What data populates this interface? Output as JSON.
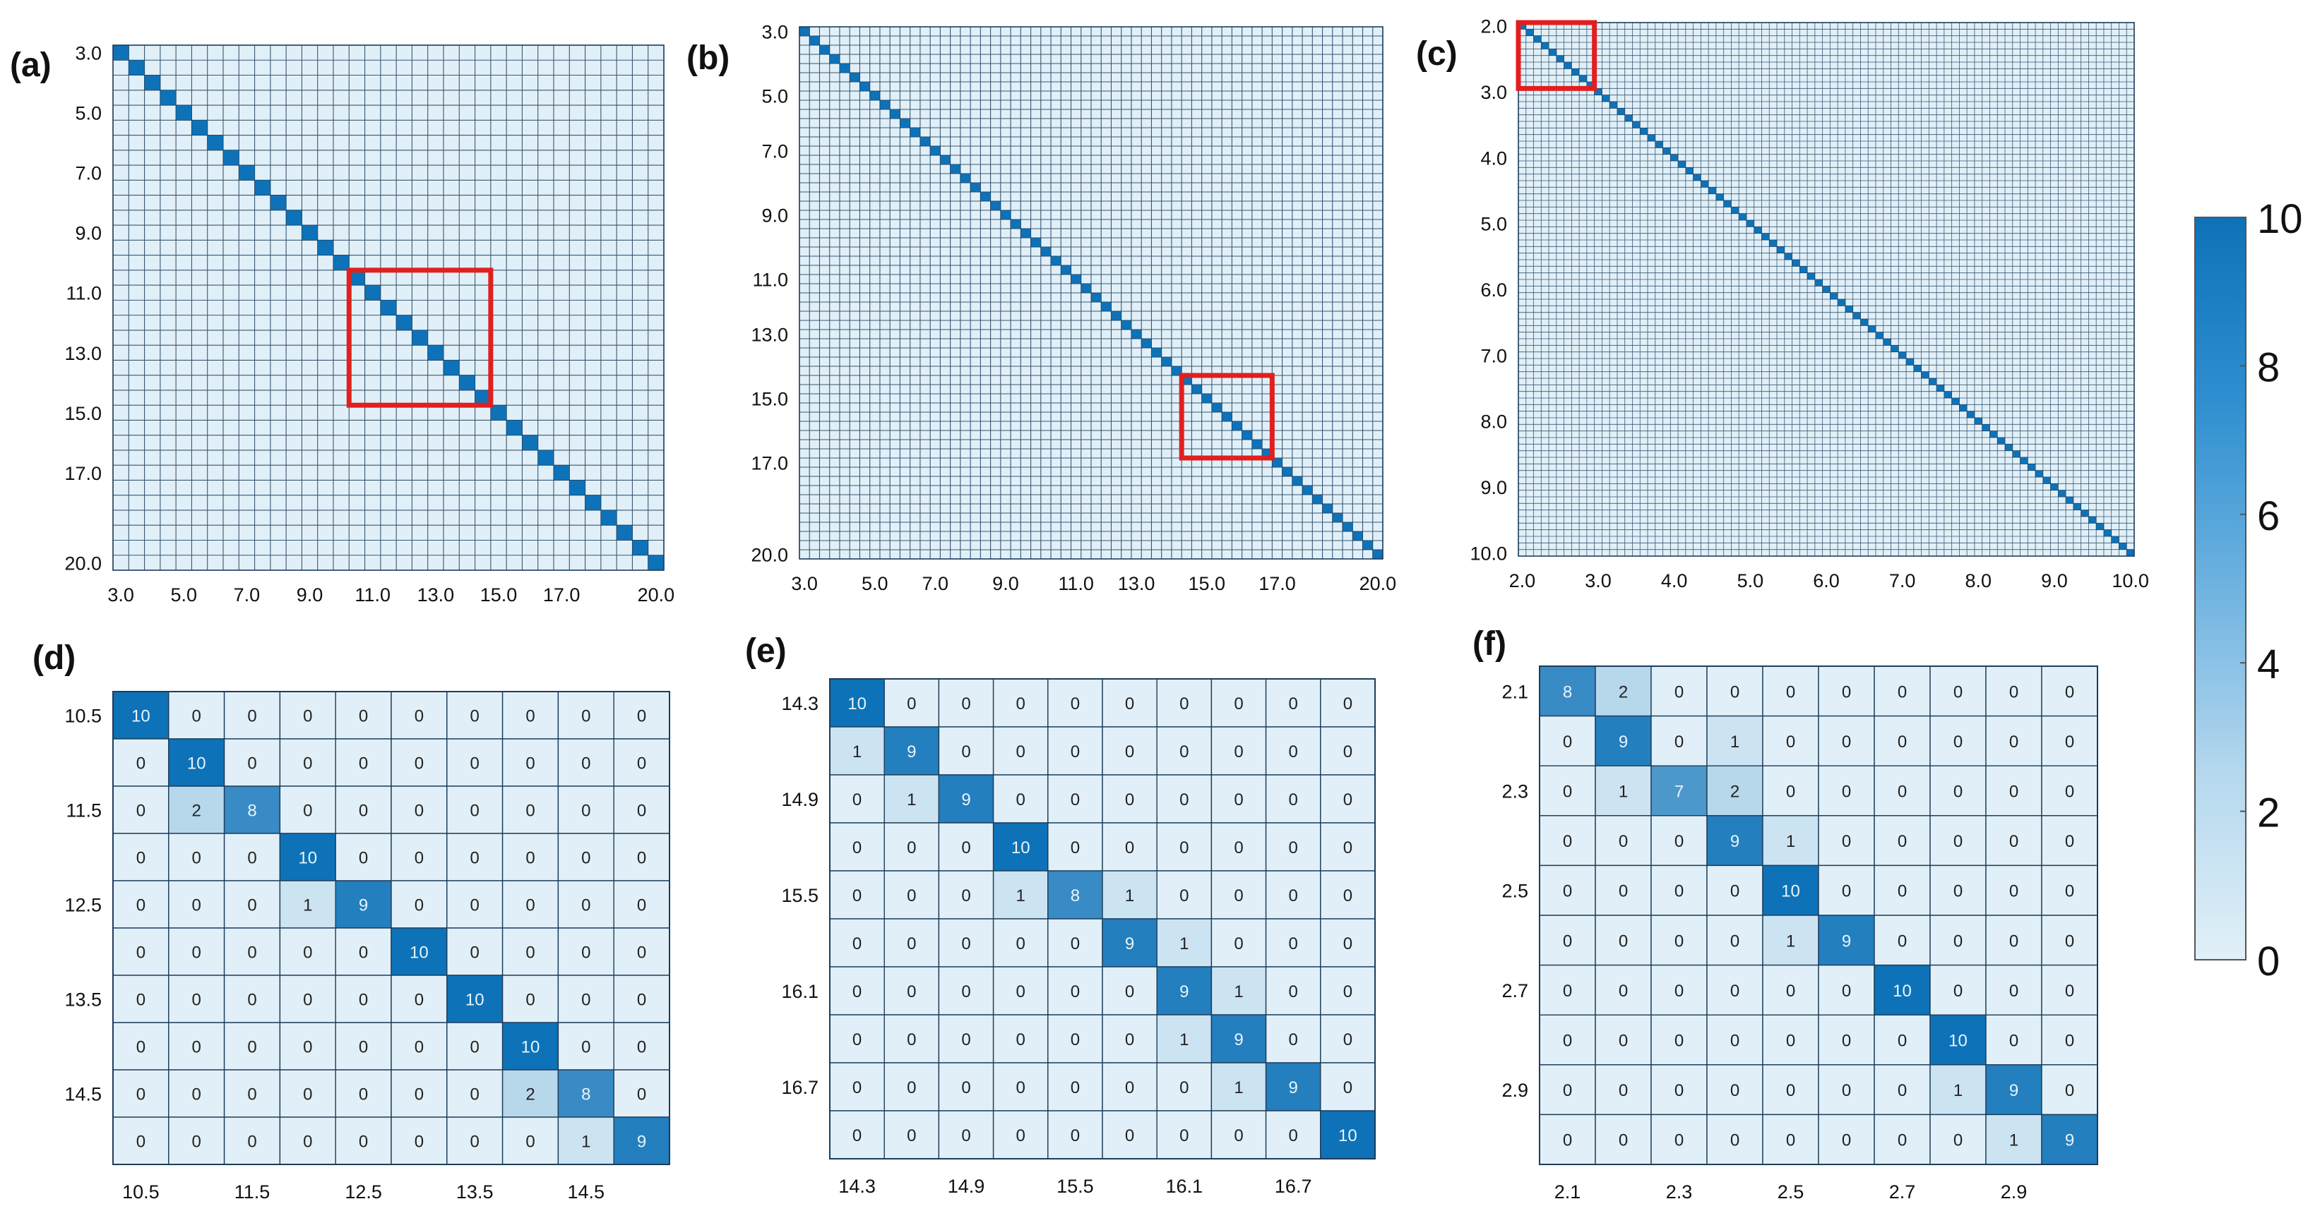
{
  "colors": {
    "low": "#e1f0f8",
    "high": "#0e72b8",
    "grid": "#1c3c5a",
    "highlight_box": "#e11f1f",
    "cell_text_dark": "#222222",
    "cell_text_light": "#e8f4fb"
  },
  "colorbar": {
    "ticks": [
      "0",
      "2",
      "4",
      "6",
      "8",
      "10"
    ],
    "min": 0,
    "max": 10
  },
  "chart_data": [
    {
      "panel_label": "(a)",
      "type": "heatmap",
      "size": 35,
      "start": 3.0,
      "step": 0.5,
      "diag_value": 10,
      "tick_labels": [
        "3.0",
        "5.0",
        "7.0",
        "9.0",
        "11.0",
        "13.0",
        "15.0",
        "17.0",
        "20.0"
      ],
      "highlight": {
        "from": "10.5",
        "to": "14.5"
      }
    },
    {
      "panel_label": "(b)",
      "type": "heatmap",
      "size": 58,
      "start": 3.0,
      "step": 0.3,
      "diag_value": 10,
      "tick_labels": [
        "3.0",
        "5.0",
        "7.0",
        "9.0",
        "11.0",
        "13.0",
        "15.0",
        "17.0",
        "20.0"
      ],
      "highlight": {
        "from": "14.3",
        "to": "16.7"
      }
    },
    {
      "panel_label": "(c)",
      "type": "heatmap",
      "size": 81,
      "start": 2.0,
      "step": 0.1,
      "diag_value": 10,
      "tick_labels": [
        "2.0",
        "3.0",
        "4.0",
        "5.0",
        "6.0",
        "7.0",
        "8.0",
        "9.0",
        "10.0"
      ],
      "highlight": {
        "from": "2.0",
        "to": "2.9"
      }
    },
    {
      "panel_label": "(d)",
      "type": "heatmap",
      "tick_labels": [
        "10.5",
        "11.5",
        "12.5",
        "13.5",
        "14.5"
      ],
      "matrix": [
        [
          10,
          0,
          0,
          0,
          0,
          0,
          0,
          0,
          0,
          0
        ],
        [
          0,
          10,
          0,
          0,
          0,
          0,
          0,
          0,
          0,
          0
        ],
        [
          0,
          2,
          8,
          0,
          0,
          0,
          0,
          0,
          0,
          0
        ],
        [
          0,
          0,
          0,
          10,
          0,
          0,
          0,
          0,
          0,
          0
        ],
        [
          0,
          0,
          0,
          1,
          9,
          0,
          0,
          0,
          0,
          0
        ],
        [
          0,
          0,
          0,
          0,
          0,
          10,
          0,
          0,
          0,
          0
        ],
        [
          0,
          0,
          0,
          0,
          0,
          0,
          10,
          0,
          0,
          0
        ],
        [
          0,
          0,
          0,
          0,
          0,
          0,
          0,
          10,
          0,
          0
        ],
        [
          0,
          0,
          0,
          0,
          0,
          0,
          0,
          2,
          8,
          0
        ],
        [
          0,
          0,
          0,
          0,
          0,
          0,
          0,
          0,
          1,
          9
        ]
      ]
    },
    {
      "panel_label": "(e)",
      "type": "heatmap",
      "tick_labels": [
        "14.3",
        "14.9",
        "15.5",
        "16.1",
        "16.7"
      ],
      "matrix": [
        [
          10,
          0,
          0,
          0,
          0,
          0,
          0,
          0,
          0,
          0
        ],
        [
          1,
          9,
          0,
          0,
          0,
          0,
          0,
          0,
          0,
          0
        ],
        [
          0,
          1,
          9,
          0,
          0,
          0,
          0,
          0,
          0,
          0
        ],
        [
          0,
          0,
          0,
          10,
          0,
          0,
          0,
          0,
          0,
          0
        ],
        [
          0,
          0,
          0,
          1,
          8,
          1,
          0,
          0,
          0,
          0
        ],
        [
          0,
          0,
          0,
          0,
          0,
          9,
          1,
          0,
          0,
          0
        ],
        [
          0,
          0,
          0,
          0,
          0,
          0,
          9,
          1,
          0,
          0
        ],
        [
          0,
          0,
          0,
          0,
          0,
          0,
          1,
          9,
          0,
          0
        ],
        [
          0,
          0,
          0,
          0,
          0,
          0,
          0,
          1,
          9,
          0
        ],
        [
          0,
          0,
          0,
          0,
          0,
          0,
          0,
          0,
          0,
          10
        ]
      ]
    },
    {
      "panel_label": "(f)",
      "type": "heatmap",
      "tick_labels": [
        "2.1",
        "2.3",
        "2.5",
        "2.7",
        "2.9"
      ],
      "matrix": [
        [
          8,
          2,
          0,
          0,
          0,
          0,
          0,
          0,
          0,
          0
        ],
        [
          0,
          9,
          0,
          1,
          0,
          0,
          0,
          0,
          0,
          0
        ],
        [
          0,
          1,
          7,
          2,
          0,
          0,
          0,
          0,
          0,
          0
        ],
        [
          0,
          0,
          0,
          9,
          1,
          0,
          0,
          0,
          0,
          0
        ],
        [
          0,
          0,
          0,
          0,
          10,
          0,
          0,
          0,
          0,
          0
        ],
        [
          0,
          0,
          0,
          0,
          1,
          9,
          0,
          0,
          0,
          0
        ],
        [
          0,
          0,
          0,
          0,
          0,
          0,
          10,
          0,
          0,
          0
        ],
        [
          0,
          0,
          0,
          0,
          0,
          0,
          0,
          10,
          0,
          0
        ],
        [
          0,
          0,
          0,
          0,
          0,
          0,
          0,
          1,
          9,
          0
        ],
        [
          0,
          0,
          0,
          0,
          0,
          0,
          0,
          0,
          1,
          9
        ]
      ]
    }
  ]
}
